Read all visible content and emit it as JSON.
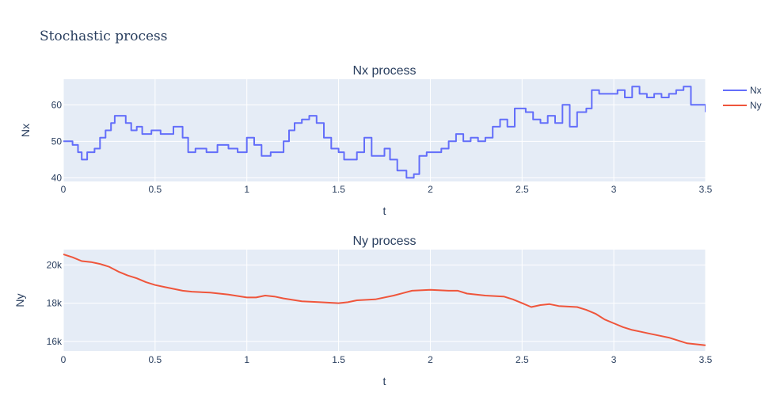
{
  "chart_data": {
    "type": "line",
    "title": "Stochastic process",
    "legend_placement": "top-right",
    "colors": {
      "plot_background": "#e5ecf6",
      "Nx": "#636efa",
      "Ny": "#EF553B",
      "text": "#2a3f5f"
    },
    "legend": [
      {
        "name": "Nx",
        "color": "#636efa"
      },
      {
        "name": "Ny",
        "color": "#EF553B"
      }
    ],
    "subplots": [
      {
        "title": "Nx process",
        "xlabel": "t",
        "ylabel": "Nx",
        "xlim": [
          0,
          3.5
        ],
        "ylim": [
          39,
          67
        ],
        "xticks": [
          0,
          0.5,
          1,
          1.5,
          2,
          2.5,
          3,
          3.5
        ],
        "xtick_labels": [
          "0",
          "0.5",
          "1",
          "1.5",
          "2",
          "2.5",
          "3",
          "3.5"
        ],
        "yticks": [
          40,
          50,
          60
        ],
        "ytick_labels": [
          "40",
          "50",
          "60"
        ],
        "grid": true,
        "series": [
          {
            "name": "Nx",
            "color": "#636efa",
            "line_shape": "step",
            "points": [
              [
                0,
                50
              ],
              [
                0.05,
                49
              ],
              [
                0.08,
                47
              ],
              [
                0.1,
                45
              ],
              [
                0.13,
                47
              ],
              [
                0.17,
                48
              ],
              [
                0.2,
                51
              ],
              [
                0.23,
                53
              ],
              [
                0.26,
                55
              ],
              [
                0.28,
                57
              ],
              [
                0.31,
                57
              ],
              [
                0.34,
                55
              ],
              [
                0.37,
                53
              ],
              [
                0.4,
                54
              ],
              [
                0.43,
                52
              ],
              [
                0.48,
                53
              ],
              [
                0.53,
                52
              ],
              [
                0.6,
                54
              ],
              [
                0.65,
                51
              ],
              [
                0.68,
                47
              ],
              [
                0.72,
                48
              ],
              [
                0.78,
                47
              ],
              [
                0.84,
                49
              ],
              [
                0.9,
                48
              ],
              [
                0.95,
                47
              ],
              [
                1.0,
                51
              ],
              [
                1.04,
                49
              ],
              [
                1.08,
                46
              ],
              [
                1.13,
                47
              ],
              [
                1.17,
                47
              ],
              [
                1.2,
                50
              ],
              [
                1.23,
                53
              ],
              [
                1.26,
                55
              ],
              [
                1.3,
                56
              ],
              [
                1.34,
                57
              ],
              [
                1.38,
                55
              ],
              [
                1.42,
                51
              ],
              [
                1.46,
                48
              ],
              [
                1.5,
                47
              ],
              [
                1.53,
                45
              ],
              [
                1.57,
                45
              ],
              [
                1.6,
                47
              ],
              [
                1.64,
                51
              ],
              [
                1.68,
                46
              ],
              [
                1.72,
                46
              ],
              [
                1.75,
                48
              ],
              [
                1.78,
                45
              ],
              [
                1.82,
                42
              ],
              [
                1.87,
                40
              ],
              [
                1.91,
                41
              ],
              [
                1.94,
                46
              ],
              [
                1.98,
                47
              ],
              [
                2.02,
                47
              ],
              [
                2.06,
                48
              ],
              [
                2.1,
                50
              ],
              [
                2.14,
                52
              ],
              [
                2.18,
                50
              ],
              [
                2.22,
                51
              ],
              [
                2.26,
                50
              ],
              [
                2.3,
                51
              ],
              [
                2.34,
                54
              ],
              [
                2.38,
                56
              ],
              [
                2.42,
                54
              ],
              [
                2.46,
                59
              ],
              [
                2.52,
                58
              ],
              [
                2.56,
                56
              ],
              [
                2.6,
                55
              ],
              [
                2.64,
                57
              ],
              [
                2.68,
                55
              ],
              [
                2.72,
                60
              ],
              [
                2.76,
                54
              ],
              [
                2.8,
                58
              ],
              [
                2.85,
                59
              ],
              [
                2.88,
                64
              ],
              [
                2.92,
                63
              ],
              [
                2.97,
                63
              ],
              [
                3.02,
                64
              ],
              [
                3.06,
                62
              ],
              [
                3.1,
                65
              ],
              [
                3.14,
                63
              ],
              [
                3.18,
                62
              ],
              [
                3.22,
                63
              ],
              [
                3.26,
                62
              ],
              [
                3.3,
                63
              ],
              [
                3.34,
                64
              ],
              [
                3.38,
                65
              ],
              [
                3.42,
                60
              ],
              [
                3.46,
                60
              ],
              [
                3.5,
                58
              ]
            ]
          }
        ]
      },
      {
        "title": "Ny process",
        "xlabel": "t",
        "ylabel": "Ny",
        "xlim": [
          0,
          3.5
        ],
        "ylim": [
          15500,
          20800
        ],
        "xticks": [
          0,
          0.5,
          1,
          1.5,
          2,
          2.5,
          3,
          3.5
        ],
        "xtick_labels": [
          "0",
          "0.5",
          "1",
          "1.5",
          "2",
          "2.5",
          "3",
          "3.5"
        ],
        "yticks": [
          16000,
          18000,
          20000
        ],
        "ytick_labels": [
          "16k",
          "18k",
          "20k"
        ],
        "grid": true,
        "series": [
          {
            "name": "Ny",
            "color": "#EF553B",
            "line_shape": "linear",
            "points": [
              [
                0,
                20550
              ],
              [
                0.05,
                20400
              ],
              [
                0.1,
                20200
              ],
              [
                0.15,
                20150
              ],
              [
                0.2,
                20050
              ],
              [
                0.25,
                19900
              ],
              [
                0.3,
                19650
              ],
              [
                0.35,
                19450
              ],
              [
                0.4,
                19300
              ],
              [
                0.45,
                19100
              ],
              [
                0.5,
                18950
              ],
              [
                0.55,
                18850
              ],
              [
                0.6,
                18750
              ],
              [
                0.65,
                18650
              ],
              [
                0.7,
                18600
              ],
              [
                0.8,
                18550
              ],
              [
                0.9,
                18450
              ],
              [
                1.0,
                18300
              ],
              [
                1.05,
                18300
              ],
              [
                1.1,
                18400
              ],
              [
                1.15,
                18350
              ],
              [
                1.2,
                18250
              ],
              [
                1.3,
                18100
              ],
              [
                1.4,
                18050
              ],
              [
                1.5,
                18000
              ],
              [
                1.55,
                18050
              ],
              [
                1.6,
                18150
              ],
              [
                1.7,
                18200
              ],
              [
                1.8,
                18400
              ],
              [
                1.9,
                18650
              ],
              [
                2.0,
                18700
              ],
              [
                2.1,
                18650
              ],
              [
                2.15,
                18650
              ],
              [
                2.2,
                18500
              ],
              [
                2.3,
                18400
              ],
              [
                2.4,
                18350
              ],
              [
                2.45,
                18200
              ],
              [
                2.5,
                18000
              ],
              [
                2.55,
                17800
              ],
              [
                2.6,
                17900
              ],
              [
                2.65,
                17950
              ],
              [
                2.7,
                17850
              ],
              [
                2.8,
                17800
              ],
              [
                2.85,
                17650
              ],
              [
                2.9,
                17450
              ],
              [
                2.95,
                17150
              ],
              [
                3.0,
                16950
              ],
              [
                3.05,
                16750
              ],
              [
                3.1,
                16600
              ],
              [
                3.15,
                16500
              ],
              [
                3.2,
                16400
              ],
              [
                3.25,
                16300
              ],
              [
                3.3,
                16200
              ],
              [
                3.35,
                16050
              ],
              [
                3.4,
                15900
              ],
              [
                3.45,
                15850
              ],
              [
                3.5,
                15800
              ]
            ]
          }
        ]
      }
    ]
  }
}
